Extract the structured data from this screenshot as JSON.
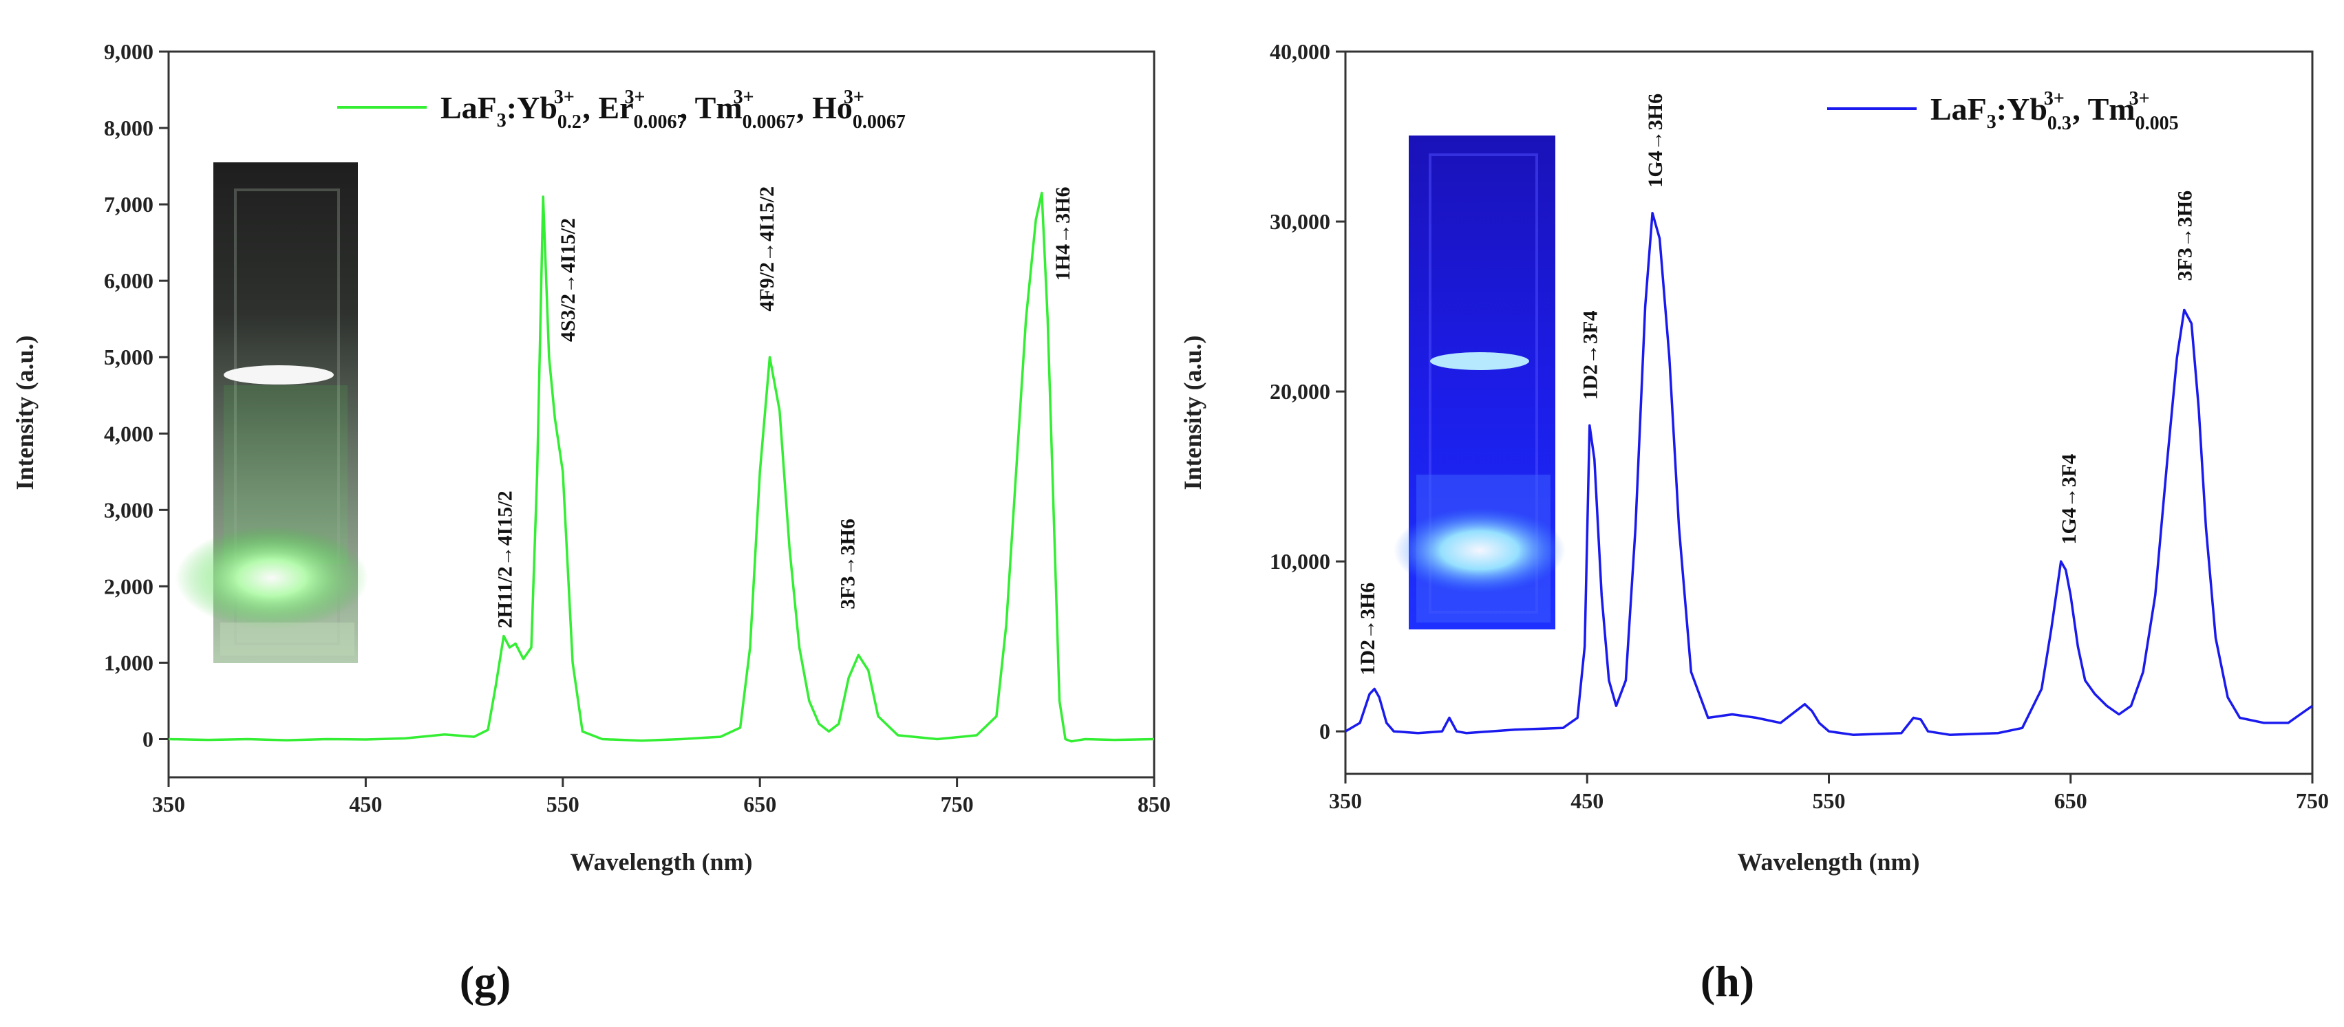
{
  "chart_data": [
    {
      "id": "g",
      "type": "line",
      "panel_label": "(g)",
      "xlabel": "Wavelength (nm)",
      "ylabel": "Intensity (a.u.)",
      "xlim": [
        350,
        850
      ],
      "ylim": [
        -500,
        9000
      ],
      "x_ticks": [
        350,
        450,
        550,
        650,
        750,
        850
      ],
      "x_tick_labels": [
        "350",
        "450",
        "550",
        "650",
        "750",
        "850"
      ],
      "y_ticks": [
        0,
        1000,
        2000,
        3000,
        4000,
        5000,
        6000,
        7000,
        8000,
        9000
      ],
      "y_tick_labels": [
        "0",
        "1,000",
        "2,000",
        "3,000",
        "4,000",
        "5,000",
        "6,000",
        "7,000",
        "8,000",
        "9,000"
      ],
      "series": [
        {
          "name": "LaF3:Yb0.2 3+, Er0.0067 3+, Tm0.0067 3+, Ho0.0067 3+",
          "color": "#33ee33",
          "x": [
            350,
            370,
            390,
            410,
            430,
            450,
            470,
            490,
            505,
            512,
            516,
            520,
            523,
            526,
            530,
            534,
            537,
            540,
            543,
            546,
            550,
            555,
            560,
            570,
            590,
            610,
            630,
            640,
            645,
            650,
            655,
            660,
            665,
            670,
            675,
            680,
            685,
            690,
            695,
            700,
            705,
            710,
            720,
            740,
            760,
            770,
            775,
            780,
            785,
            790,
            793,
            796,
            799,
            802,
            805,
            808,
            815,
            830,
            850
          ],
          "y": [
            0,
            -10,
            0,
            -15,
            0,
            -5,
            10,
            60,
            30,
            120,
            700,
            1350,
            1200,
            1250,
            1050,
            1200,
            3500,
            7100,
            5000,
            4200,
            3500,
            1000,
            100,
            0,
            -20,
            0,
            30,
            150,
            1200,
            3500,
            5000,
            4300,
            2500,
            1200,
            500,
            200,
            100,
            200,
            800,
            1100,
            900,
            300,
            50,
            0,
            50,
            300,
            1500,
            3500,
            5500,
            6800,
            7150,
            5500,
            3000,
            500,
            0,
            -30,
            0,
            -10,
            0
          ]
        }
      ],
      "legend": {
        "formula_main": "LaF",
        "formula_sub": "3",
        "formula_colon": ":",
        "dopants": [
          {
            "el": "Yb",
            "sub": "0.2",
            "sup": "3+"
          },
          {
            "el": "Er",
            "sub": "0.0067",
            "sup": "3+"
          },
          {
            "el": "Tm",
            "sub": "0.0067",
            "sup": "3+"
          },
          {
            "el": "Ho",
            "sub": "0.0067",
            "sup": "3+"
          }
        ]
      },
      "annotations": [
        {
          "label": "2H11/2→4I15/2",
          "at_wavelength": 524,
          "at_intensity": 1450
        },
        {
          "label": "4S3/2→4I15/2",
          "at_wavelength": 556,
          "at_intensity": 5200
        },
        {
          "label": "4F9/2→4I15/2",
          "at_wavelength": 657,
          "at_intensity": 5600
        },
        {
          "label": "3F3→3H6",
          "at_wavelength": 698,
          "at_intensity": 1700
        },
        {
          "label": "1H4→3H6",
          "at_wavelength": 807,
          "at_intensity": 6000
        }
      ],
      "inset": {
        "kind": "photo",
        "description": "cuvette with green emission"
      }
    },
    {
      "id": "h",
      "type": "line",
      "panel_label": "(h)",
      "xlabel": "Wavelength (nm)",
      "ylabel": "Intensity (a.u.)",
      "xlim": [
        350,
        750
      ],
      "ylim": [
        -2500,
        40000
      ],
      "x_ticks": [
        350,
        450,
        550,
        650,
        750
      ],
      "x_tick_labels": [
        "350",
        "450",
        "550",
        "650",
        "750"
      ],
      "y_ticks": [
        0,
        10000,
        20000,
        30000,
        40000
      ],
      "y_tick_labels": [
        "0",
        "10,000",
        "20,000",
        "30,000",
        "40,000"
      ],
      "series": [
        {
          "name": "LaF3:Yb0.3 3+, Tm0.005 3+",
          "color": "#1a1aee",
          "x": [
            350,
            356,
            360,
            362,
            364,
            367,
            370,
            380,
            390,
            393,
            396,
            400,
            420,
            440,
            446,
            449,
            451,
            453,
            456,
            459,
            462,
            466,
            470,
            474,
            477,
            480,
            484,
            488,
            493,
            500,
            510,
            520,
            530,
            540,
            543,
            546,
            550,
            560,
            580,
            585,
            588,
            591,
            600,
            620,
            630,
            638,
            642,
            646,
            648,
            650,
            653,
            656,
            660,
            665,
            670,
            675,
            680,
            685,
            690,
            694,
            697,
            700,
            703,
            706,
            710,
            715,
            720,
            730,
            740,
            745,
            750
          ],
          "y": [
            0,
            500,
            2200,
            2500,
            2000,
            500,
            0,
            -100,
            0,
            800,
            0,
            -100,
            100,
            200,
            800,
            5000,
            18000,
            16000,
            8000,
            3000,
            1500,
            3000,
            12000,
            25000,
            30500,
            29000,
            22000,
            12000,
            3500,
            800,
            1000,
            800,
            500,
            1600,
            1200,
            500,
            0,
            -200,
            -100,
            800,
            700,
            0,
            -200,
            -100,
            200,
            2500,
            6000,
            10000,
            9500,
            8000,
            5000,
            3000,
            2200,
            1500,
            1000,
            1500,
            3500,
            8000,
            16000,
            22000,
            24800,
            24000,
            19000,
            12000,
            5500,
            2000,
            800,
            500,
            500,
            1000,
            1500
          ]
        }
      ],
      "legend": {
        "formula_main": "LaF",
        "formula_sub": "3",
        "formula_colon": ":",
        "dopants": [
          {
            "el": "Yb",
            "sub": "0.3",
            "sup": "3+"
          },
          {
            "el": "Tm",
            "sub": "0.005",
            "sup": "3+"
          }
        ]
      },
      "annotations": [
        {
          "label": "1D2→3H6",
          "at_wavelength": 362,
          "at_intensity": 3300
        },
        {
          "label": "1D2→3F4",
          "at_wavelength": 454,
          "at_intensity": 19500
        },
        {
          "label": "1G4→3H6",
          "at_wavelength": 481,
          "at_intensity": 32000
        },
        {
          "label": "1G4→3F4",
          "at_wavelength": 652,
          "at_intensity": 11000
        },
        {
          "label": "3F3→3H6",
          "at_wavelength": 700,
          "at_intensity": 26500
        }
      ],
      "inset": {
        "kind": "photo",
        "description": "cuvette with blue emission"
      }
    }
  ]
}
